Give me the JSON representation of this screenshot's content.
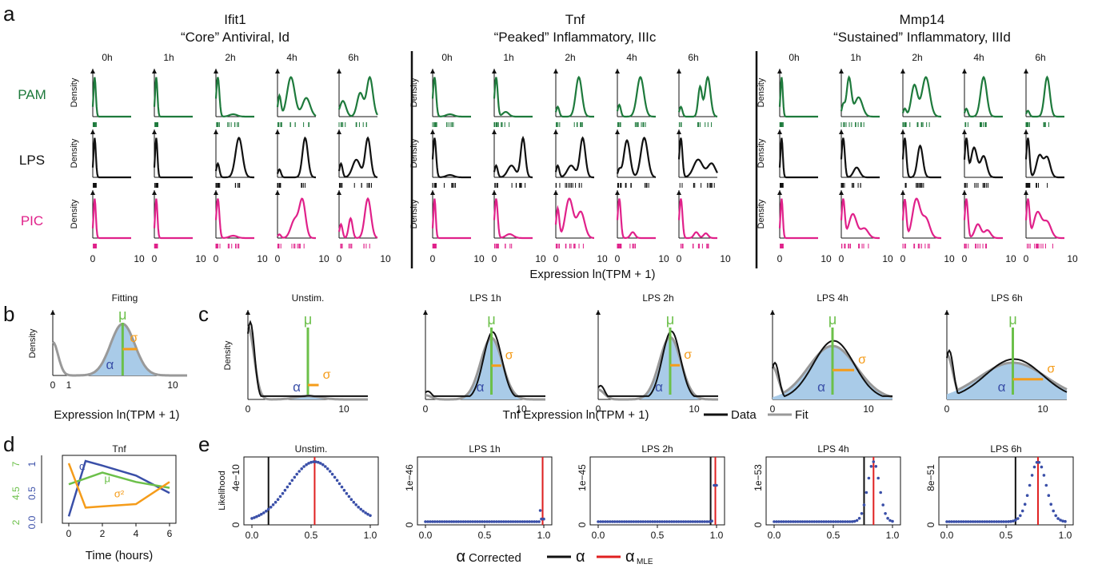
{
  "panel_letters": [
    "a",
    "b",
    "c",
    "d",
    "e"
  ],
  "colors": {
    "PAM": "#1e7a3c",
    "LPS": "#111111",
    "PIC": "#e0218a",
    "fit": "#999999",
    "fill": "#a9cbe8",
    "mu": "#6cc04a",
    "sigma": "#f59c1a",
    "alpha": "#3a4fa8",
    "mle": "#e02020"
  },
  "panel_a": {
    "genes": [
      {
        "title": "Ifit1",
        "subtitle": "“Core” Antiviral, Id"
      },
      {
        "title": "Tnf",
        "subtitle": "“Peaked” Inflammatory, IIIc"
      },
      {
        "title": "Mmp14",
        "subtitle": "“Sustained” Inflammatory, IIId"
      }
    ],
    "times": [
      "0h",
      "1h",
      "2h",
      "4h",
      "6h"
    ],
    "stimuli": [
      "PAM",
      "LPS",
      "PIC"
    ],
    "ylabel": "Density",
    "xticks": [
      "0",
      "10"
    ],
    "xlabel": "Expression ln(TPM + 1)"
  },
  "panel_b": {
    "title": "Fitting",
    "ylabel": "Density",
    "xticks": [
      "0",
      "1",
      "10"
    ],
    "xlabel": "Expression ln(TPM + 1)",
    "mu": "μ",
    "sigma": "σ",
    "alpha": "α"
  },
  "panel_c": {
    "titles": [
      "Unstim.",
      "LPS 1h",
      "LPS 2h",
      "LPS 4h",
      "LPS 6h"
    ],
    "ylabel": "Density",
    "xticks": [
      "0",
      "10"
    ],
    "xlabel": "Tnf Expression ln(TPM + 1)",
    "legend": [
      "Data",
      "Fit"
    ],
    "mu": "μ",
    "sigma": "σ",
    "alpha": "α"
  },
  "panel_d": {
    "title": "Tnf",
    "xlabel": "Time (hours)",
    "xticks": [
      "0",
      "2",
      "4",
      "6"
    ],
    "left_axis_green": [
      "2",
      "4.5",
      "7"
    ],
    "left_axis_blue": [
      "0.0",
      "0.5",
      "1"
    ],
    "labels": {
      "alpha": "α",
      "mu": "μ",
      "sigma2": "σ²"
    }
  },
  "panel_e": {
    "titles": [
      "Unstim.",
      "LPS 1h",
      "LPS 2h",
      "LPS 4h",
      "LPS 6h"
    ],
    "ylabel": "Likelihood",
    "yticks": [
      [
        "0",
        "4e−10"
      ],
      [
        "0",
        "1e−46"
      ],
      [
        "0",
        "1e−45"
      ],
      [
        "0",
        "1e−53"
      ],
      [
        "0",
        "8e−51"
      ]
    ],
    "xticks": [
      "0.0",
      "0.5",
      "1.0"
    ],
    "legend_prefix": "α",
    "legend_label": "Corrected",
    "legend_alpha": "α",
    "legend_mle": "α",
    "legend_mle_sub": "MLE"
  },
  "chart_data": [
    {
      "type": "line",
      "panel": "d",
      "title": "Tnf",
      "xlabel": "Time (hours)",
      "x": [
        0,
        1,
        2,
        4,
        6
      ],
      "series": [
        {
          "name": "α",
          "values": [
            0.05,
            1.0,
            0.92,
            0.75,
            0.45
          ]
        },
        {
          "name": "μ",
          "values": [
            5.0,
            5.5,
            6.0,
            5.2,
            4.7
          ]
        },
        {
          "name": "σ²",
          "values": [
            6.8,
            3.0,
            3.1,
            3.3,
            5.2
          ]
        }
      ]
    },
    {
      "type": "scatter",
      "panel": "e",
      "xlabel": "α Corrected",
      "plots": [
        {
          "title": "Unstim.",
          "alpha": 0.14,
          "alpha_mle": 0.53
        },
        {
          "title": "LPS 1h",
          "alpha": 0.99,
          "alpha_mle": 0.99
        },
        {
          "title": "LPS 2h",
          "alpha": 0.95,
          "alpha_mle": 0.99
        },
        {
          "title": "LPS 4h",
          "alpha": 0.76,
          "alpha_mle": 0.84
        },
        {
          "title": "LPS 6h",
          "alpha": 0.58,
          "alpha_mle": 0.77
        }
      ],
      "xlim": [
        0,
        1
      ]
    }
  ]
}
